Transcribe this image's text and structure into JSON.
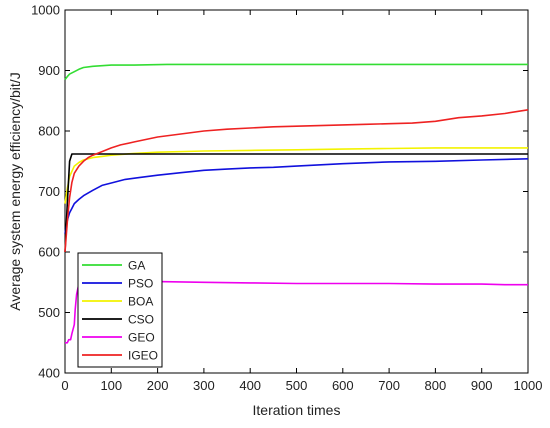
{
  "chart_data": {
    "type": "line",
    "title": "",
    "xlabel": "Iteration times",
    "ylabel": "Average system energy efficiency/bit/J",
    "xlim": [
      0,
      1000
    ],
    "ylim": [
      400,
      1000
    ],
    "xticks": [
      0,
      100,
      200,
      300,
      400,
      500,
      600,
      700,
      800,
      900,
      1000
    ],
    "yticks": [
      400,
      500,
      600,
      700,
      800,
      900,
      1000
    ],
    "grid": false,
    "legend_position": "bottom-left",
    "series": [
      {
        "name": "GA",
        "color": "#33dd33",
        "points": [
          [
            0,
            885
          ],
          [
            5,
            890
          ],
          [
            10,
            894
          ],
          [
            20,
            898
          ],
          [
            30,
            902
          ],
          [
            40,
            905
          ],
          [
            60,
            907
          ],
          [
            80,
            908
          ],
          [
            100,
            909
          ],
          [
            150,
            909
          ],
          [
            220,
            910
          ],
          [
            400,
            910
          ],
          [
            600,
            910
          ],
          [
            800,
            910
          ],
          [
            1000,
            910
          ]
        ]
      },
      {
        "name": "PSO",
        "color": "#1111dd",
        "points": [
          [
            0,
            630
          ],
          [
            3,
            645
          ],
          [
            6,
            655
          ],
          [
            10,
            665
          ],
          [
            15,
            672
          ],
          [
            20,
            680
          ],
          [
            30,
            687
          ],
          [
            40,
            693
          ],
          [
            60,
            702
          ],
          [
            80,
            710
          ],
          [
            100,
            714
          ],
          [
            130,
            720
          ],
          [
            160,
            723
          ],
          [
            200,
            727
          ],
          [
            250,
            731
          ],
          [
            300,
            735
          ],
          [
            350,
            737
          ],
          [
            400,
            739
          ],
          [
            450,
            740
          ],
          [
            500,
            742
          ],
          [
            600,
            746
          ],
          [
            700,
            749
          ],
          [
            800,
            750
          ],
          [
            900,
            752
          ],
          [
            1000,
            754
          ]
        ]
      },
      {
        "name": "BOA",
        "color": "#f3f300",
        "points": [
          [
            0,
            680
          ],
          [
            5,
            705
          ],
          [
            10,
            725
          ],
          [
            20,
            742
          ],
          [
            30,
            748
          ],
          [
            40,
            752
          ],
          [
            60,
            756
          ],
          [
            80,
            758
          ],
          [
            100,
            760
          ],
          [
            150,
            763
          ],
          [
            200,
            765
          ],
          [
            300,
            767
          ],
          [
            400,
            768
          ],
          [
            500,
            769
          ],
          [
            600,
            770
          ],
          [
            700,
            771
          ],
          [
            800,
            772
          ],
          [
            900,
            772
          ],
          [
            1000,
            772
          ]
        ]
      },
      {
        "name": "CSO",
        "color": "#000000",
        "points": [
          [
            0,
            600
          ],
          [
            5,
            680
          ],
          [
            10,
            750
          ],
          [
            15,
            762
          ],
          [
            20,
            762
          ],
          [
            100,
            762
          ],
          [
            200,
            762
          ],
          [
            400,
            762
          ],
          [
            600,
            762
          ],
          [
            800,
            762
          ],
          [
            1000,
            762
          ]
        ]
      },
      {
        "name": "GEO",
        "color": "#ee00ee",
        "points": [
          [
            0,
            450
          ],
          [
            5,
            450
          ],
          [
            8,
            455
          ],
          [
            12,
            455
          ],
          [
            15,
            465
          ],
          [
            20,
            480
          ],
          [
            22,
            505
          ],
          [
            25,
            530
          ],
          [
            30,
            548
          ],
          [
            40,
            552
          ],
          [
            60,
            552
          ],
          [
            100,
            552
          ],
          [
            200,
            551
          ],
          [
            300,
            550
          ],
          [
            400,
            549
          ],
          [
            500,
            548
          ],
          [
            600,
            548
          ],
          [
            700,
            548
          ],
          [
            800,
            547
          ],
          [
            900,
            547
          ],
          [
            950,
            546
          ],
          [
            1000,
            546
          ]
        ]
      },
      {
        "name": "IGEO",
        "color": "#ee2222",
        "points": [
          [
            0,
            600
          ],
          [
            3,
            630
          ],
          [
            6,
            660
          ],
          [
            10,
            690
          ],
          [
            15,
            715
          ],
          [
            20,
            730
          ],
          [
            30,
            742
          ],
          [
            40,
            750
          ],
          [
            50,
            756
          ],
          [
            60,
            760
          ],
          [
            80,
            766
          ],
          [
            100,
            772
          ],
          [
            120,
            777
          ],
          [
            150,
            782
          ],
          [
            200,
            790
          ],
          [
            250,
            795
          ],
          [
            300,
            800
          ],
          [
            350,
            803
          ],
          [
            400,
            805
          ],
          [
            450,
            807
          ],
          [
            500,
            808
          ],
          [
            550,
            809
          ],
          [
            600,
            810
          ],
          [
            650,
            811
          ],
          [
            700,
            812
          ],
          [
            750,
            813
          ],
          [
            800,
            816
          ],
          [
            850,
            822
          ],
          [
            900,
            825
          ],
          [
            950,
            829
          ],
          [
            1000,
            835
          ]
        ]
      }
    ]
  }
}
